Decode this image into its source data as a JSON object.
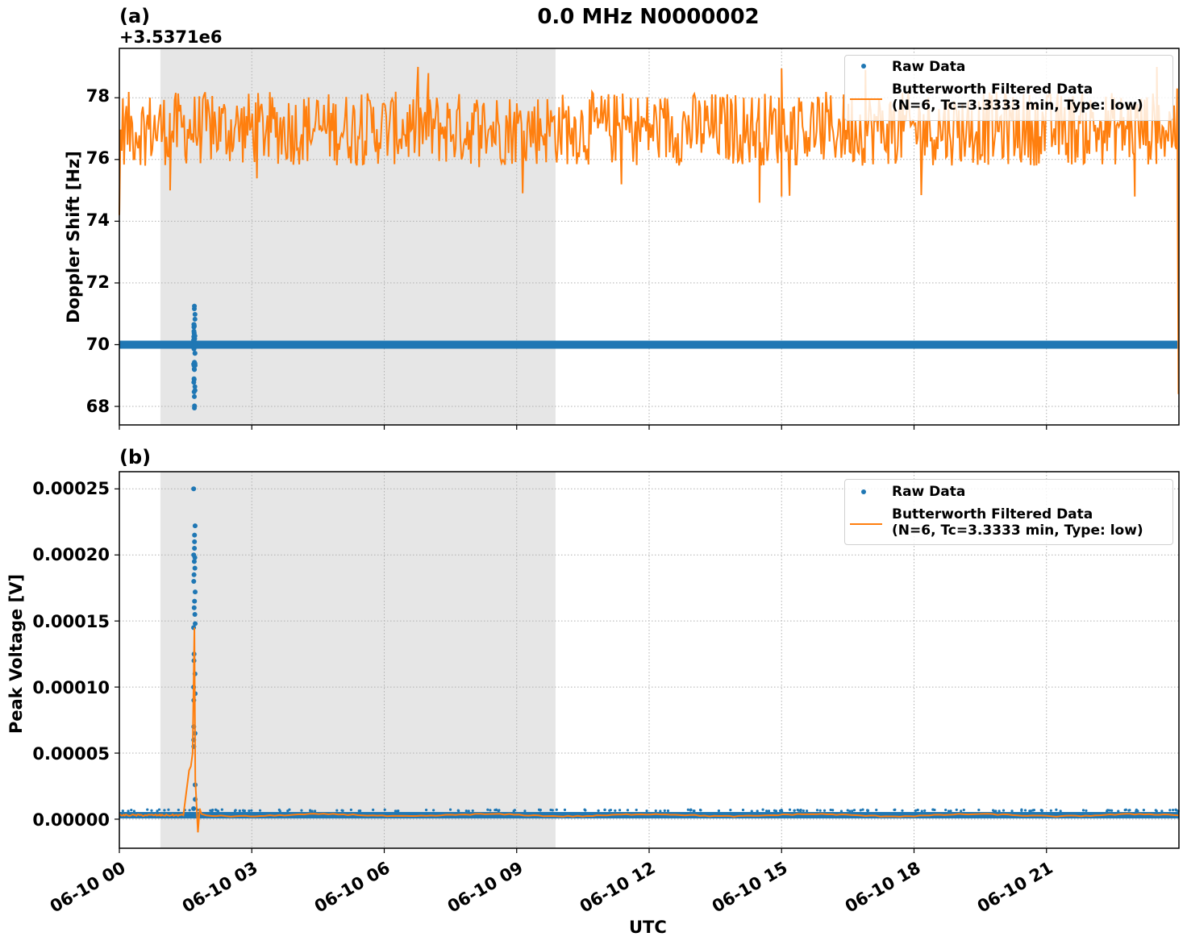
{
  "figure": {
    "title": "0.0 MHz N0000002",
    "xlabel": "UTC"
  },
  "panels": [
    {
      "label": "(a)",
      "offset_text": "+3.5371e6",
      "ylabel": "Doppler Shift [Hz]",
      "yticks": [
        "78",
        "76",
        "74",
        "72",
        "70",
        "68"
      ],
      "legend": {
        "raw": "Raw Data",
        "filtered_line1": "Butterworth Filtered Data",
        "filtered_line2": "(N=6, Tc=3.3333 min, Type: low)"
      }
    },
    {
      "label": "(b)",
      "ylabel": "Peak Voltage [V]",
      "yticks": [
        "0.00025",
        "0.00020",
        "0.00015",
        "0.00010",
        "0.00005",
        "0.00000"
      ],
      "legend": {
        "raw": "Raw Data",
        "filtered_line1": "Butterworth Filtered Data",
        "filtered_line2": "(N=6, Tc=3.3333 min, Type: low)"
      }
    }
  ],
  "xticks": [
    "06-10 00",
    "06-10 03",
    "06-10 06",
    "06-10 09",
    "06-10 12",
    "06-10 15",
    "06-10 18",
    "06-10 21"
  ],
  "colors": {
    "raw": "#1f77b4",
    "filtered": "#ff7f0e",
    "shade": "#e6e6e6",
    "grid": "#b0b0b0"
  },
  "chart_data": [
    {
      "type": "line",
      "title": "0.0 MHz N0000002",
      "panel": "(a)",
      "xlabel": "UTC",
      "ylabel": "Doppler Shift [Hz]",
      "y_offset": "+3.5371e6",
      "xlim_hours": [
        0,
        24
      ],
      "ylim": [
        67.4,
        79.6
      ],
      "grid": true,
      "legend_position": "upper right",
      "x_tick_labels": [
        "06-10 00",
        "06-10 03",
        "06-10 06",
        "06-10 09",
        "06-10 12",
        "06-10 15",
        "06-10 18",
        "06-10 21"
      ],
      "y_tick_labels": [
        "68",
        "70",
        "72",
        "74",
        "76",
        "78"
      ],
      "shaded_region_hours": [
        0.93,
        9.88
      ],
      "series": [
        {
          "name": "Raw Data",
          "style": "scatter",
          "description": "Constant at ~70 Hz across the full day; vertical scatter burst near 01:40 UTC spanning ~68.0 to ~71.2 Hz",
          "baseline": 70.0,
          "burst": {
            "x_hours": 1.7,
            "min": 67.95,
            "max": 71.25
          }
        },
        {
          "name": "Butterworth Filtered Data (N=6, Tc=3.3333 min, Type: low)",
          "style": "line",
          "description": "Noisy signal oscillating mostly between ~75.8 and ~78.5 Hz, mean ~77; starts at ~74.2, ends dropping to ~68.4 at the last sample",
          "mean": 77.0,
          "range_typical": [
            75.8,
            78.5
          ],
          "min_dips": [
            {
              "x_hours": 1.15,
              "y": 75.0
            },
            {
              "x_hours": 14.5,
              "y": 74.6
            },
            {
              "x_hours": 15.0,
              "y": 74.8
            },
            {
              "x_hours": 23.0,
              "y": 74.8
            }
          ],
          "max_peaks": [
            {
              "x_hours": 7.0,
              "y": 78.8
            },
            {
              "x_hours": 15.0,
              "y": 78.95
            },
            {
              "x_hours": 16.9,
              "y": 78.9
            },
            {
              "x_hours": 23.5,
              "y": 79.0
            }
          ],
          "end_value": 68.4
        }
      ]
    },
    {
      "type": "line",
      "panel": "(b)",
      "xlabel": "UTC",
      "ylabel": "Peak Voltage [V]",
      "xlim_hours": [
        0,
        24
      ],
      "ylim": [
        -2.2e-05,
        0.000263
      ],
      "grid": true,
      "legend_position": "upper right",
      "x_tick_labels": [
        "06-10 00",
        "06-10 03",
        "06-10 06",
        "06-10 09",
        "06-10 12",
        "06-10 15",
        "06-10 18",
        "06-10 21"
      ],
      "y_tick_labels": [
        "0.00000",
        "0.00005",
        "0.00010",
        "0.00015",
        "0.00020",
        "0.00025"
      ],
      "shaded_region_hours": [
        0.93,
        9.88
      ],
      "series": [
        {
          "name": "Raw Data",
          "style": "scatter",
          "description": "Near-constant ~0.000003 V all day; spike near 01:40 UTC with points up to 0.00025 V (dense 0.00018-0.00022)",
          "baseline": 3e-06,
          "burst": {
            "x_hours": 1.7,
            "max": 0.00025
          }
        },
        {
          "name": "Butterworth Filtered Data (N=6, Tc=3.3333 min, Type: low)",
          "style": "line",
          "description": "Flat ~0.000003 V; ramps up from ~1.45h to ~0.00005 then peaks at ~0.000145 near 1.7h, undershoots to ~-0.00001, returns to baseline",
          "baseline": 3e-06,
          "peak": {
            "x_hours": 1.7,
            "y": 0.000145
          },
          "undershoot": {
            "x_hours": 1.78,
            "y": -1e-05
          }
        }
      ]
    }
  ]
}
